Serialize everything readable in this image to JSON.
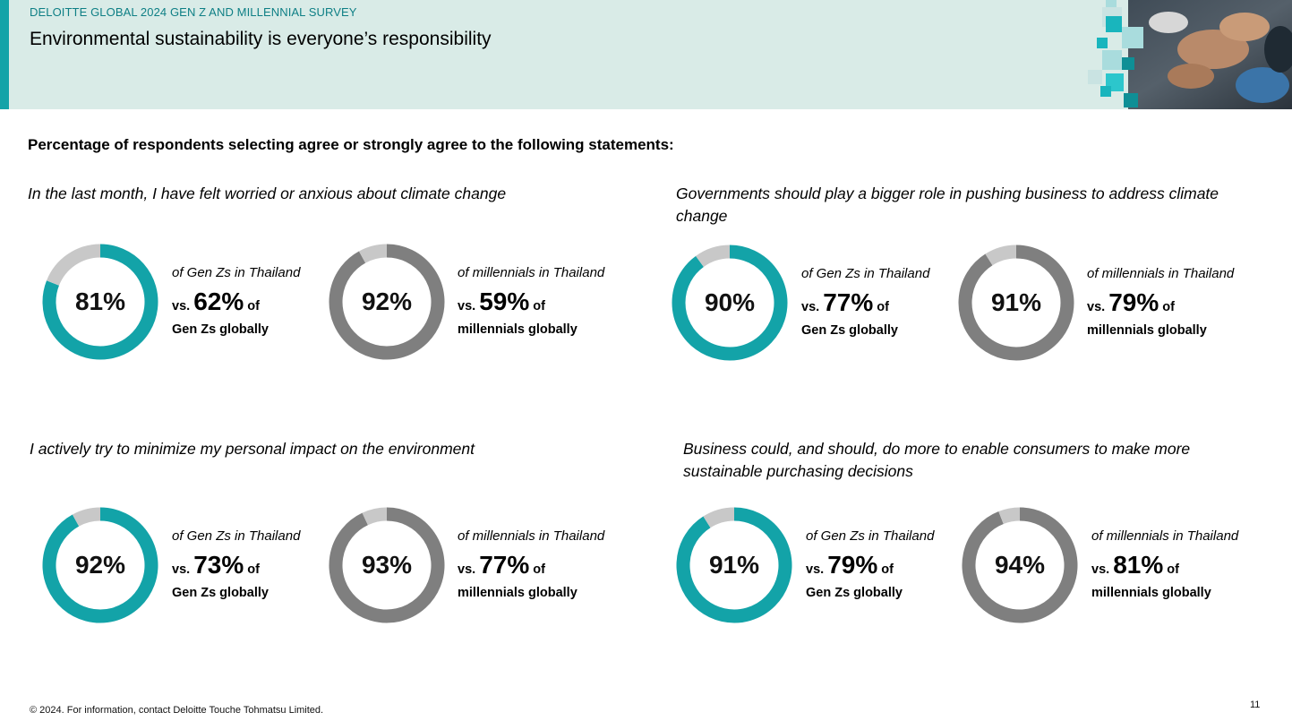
{
  "header": {
    "kicker": "DELOITTE GLOBAL 2024 GEN Z AND MILLENNIAL SURVEY",
    "title": "Environmental sustainability is everyone’s responsibility"
  },
  "subtitle": "Percentage of respondents selecting agree or strongly agree to the following statements:",
  "colors": {
    "genz": "#13a3a8",
    "millennial": "#7f7f7f",
    "remainder": "#c8c8c8",
    "header_bg": "#d9ebe7"
  },
  "panels": [
    {
      "question": "In the last month, I have felt worried or anxious about climate change",
      "genz": {
        "pct": "81%",
        "label": "of Gen Zs in Thailand",
        "vs": "vs.",
        "global": "62%",
        "of": "of",
        "tail": "Gen Zs globally"
      },
      "millennial": {
        "pct": "92%",
        "label": "of millennials in Thailand",
        "vs": "vs.",
        "global": "59%",
        "of": "of",
        "tail": "millennials globally"
      }
    },
    {
      "question": "Governments should play a bigger role in pushing business to address climate change",
      "genz": {
        "pct": "90%",
        "label": "of Gen Zs in Thailand",
        "vs": "vs.",
        "global": "77%",
        "of": "of",
        "tail": "Gen Zs globally"
      },
      "millennial": {
        "pct": "91%",
        "label": "of millennials in Thailand",
        "vs": "vs.",
        "global": "79%",
        "of": "of",
        "tail": "millennials globally"
      }
    },
    {
      "question": "I actively try to minimize my personal impact on the environment",
      "genz": {
        "pct": "92%",
        "label": "of Gen Zs in Thailand",
        "vs": "vs.",
        "global": "73%",
        "of": "of",
        "tail": "Gen Zs globally"
      },
      "millennial": {
        "pct": "93%",
        "label": "of millennials in Thailand",
        "vs": "vs.",
        "global": "77%",
        "of": "of",
        "tail": "millennials globally"
      }
    },
    {
      "question": "Business could, and should, do more to enable consumers to make more sustainable purchasing decisions",
      "genz": {
        "pct": "91%",
        "label": "of Gen Zs in Thailand",
        "vs": "vs.",
        "global": "79%",
        "of": "of",
        "tail": "Gen Zs globally"
      },
      "millennial": {
        "pct": "94%",
        "label": "of millennials in Thailand",
        "vs": "vs.",
        "global": "81%",
        "of": "of",
        "tail": "millennials globally"
      }
    }
  ],
  "chart_data": [
    {
      "type": "pie",
      "series": [
        {
          "name": "Gen Zs in Thailand",
          "values": [
            81,
            19
          ]
        }
      ]
    },
    {
      "type": "pie",
      "series": [
        {
          "name": "millennials in Thailand",
          "values": [
            92,
            8
          ]
        }
      ]
    },
    {
      "type": "pie",
      "series": [
        {
          "name": "Gen Zs in Thailand",
          "values": [
            90,
            10
          ]
        }
      ]
    },
    {
      "type": "pie",
      "series": [
        {
          "name": "millennials in Thailand",
          "values": [
            91,
            9
          ]
        }
      ]
    },
    {
      "type": "pie",
      "series": [
        {
          "name": "Gen Zs in Thailand",
          "values": [
            92,
            8
          ]
        }
      ]
    },
    {
      "type": "pie",
      "series": [
        {
          "name": "millennials in Thailand",
          "values": [
            93,
            7
          ]
        }
      ]
    },
    {
      "type": "pie",
      "series": [
        {
          "name": "Gen Zs in Thailand",
          "values": [
            91,
            9
          ]
        }
      ]
    },
    {
      "type": "pie",
      "series": [
        {
          "name": "millennials in Thailand",
          "values": [
            94,
            6
          ]
        }
      ]
    }
  ],
  "footer": "© 2024. For information, contact Deloitte Touche Tohmatsu Limited.",
  "page_number": "11"
}
